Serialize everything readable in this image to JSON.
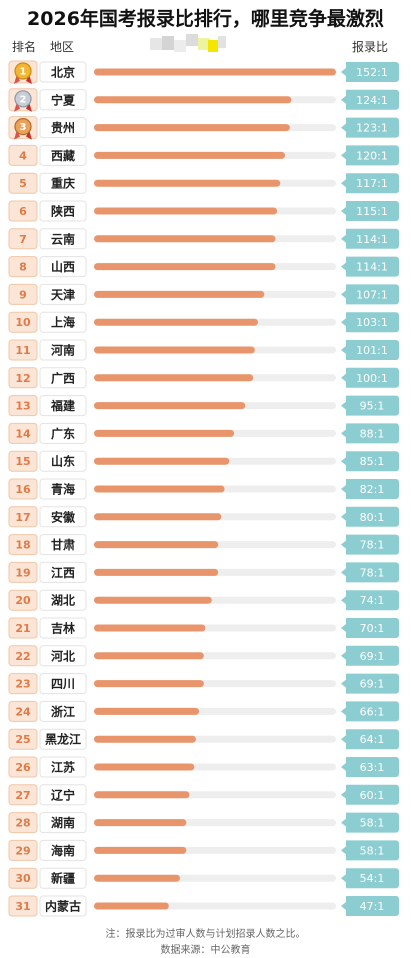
{
  "title": "2026年国考报录比排行，哪里竞争最激烈",
  "header": {
    "rank_label": "排名",
    "region_label": "地区",
    "ratio_label": "报录比"
  },
  "chart_data": {
    "type": "bar",
    "orientation": "horizontal",
    "title": "2026年国考报录比排行，哪里竞争最激烈",
    "xlim": [
      0,
      152
    ],
    "ranks": [
      1,
      2,
      3,
      4,
      5,
      6,
      7,
      8,
      9,
      10,
      11,
      12,
      13,
      14,
      15,
      16,
      17,
      18,
      19,
      20,
      21,
      22,
      23,
      24,
      25,
      26,
      27,
      28,
      29,
      30,
      31
    ],
    "categories": [
      "北京",
      "宁夏",
      "贵州",
      "西藏",
      "重庆",
      "陕西",
      "云南",
      "山西",
      "天津",
      "上海",
      "河南",
      "广西",
      "福建",
      "广东",
      "山东",
      "青海",
      "安徽",
      "甘肃",
      "江西",
      "湖北",
      "吉林",
      "河北",
      "四川",
      "浙江",
      "黑龙江",
      "江苏",
      "辽宁",
      "湖南",
      "海南",
      "新疆",
      "内蒙古"
    ],
    "values": [
      152,
      124,
      123,
      120,
      117,
      115,
      114,
      114,
      107,
      103,
      101,
      100,
      95,
      88,
      85,
      82,
      80,
      78,
      78,
      74,
      70,
      69,
      69,
      66,
      64,
      63,
      60,
      58,
      58,
      54,
      47
    ],
    "labels": [
      "152:1",
      "124:1",
      "123:1",
      "120:1",
      "117:1",
      "115:1",
      "114:1",
      "114:1",
      "107:1",
      "103:1",
      "101:1",
      "100:1",
      "95:1",
      "88:1",
      "85:1",
      "82:1",
      "80:1",
      "78:1",
      "78:1",
      "74:1",
      "70:1",
      "69:1",
      "69:1",
      "66:1",
      "64:1",
      "63:1",
      "60:1",
      "58:1",
      "58:1",
      "54:1",
      "47:1"
    ],
    "medal_icons": [
      "gold-medal-icon",
      "silver-medal-icon",
      "bronze-medal-icon"
    ]
  },
  "colors": {
    "bar": "#e8956b",
    "track": "#eeeeee",
    "value_box": "#8ccdd2",
    "rank_box": "#fbe5d6",
    "rank_text": "#e07b48"
  },
  "footer": {
    "note": "注：报录比为过审人数与计划招录人数之比。",
    "source": "数据来源：中公教育"
  }
}
